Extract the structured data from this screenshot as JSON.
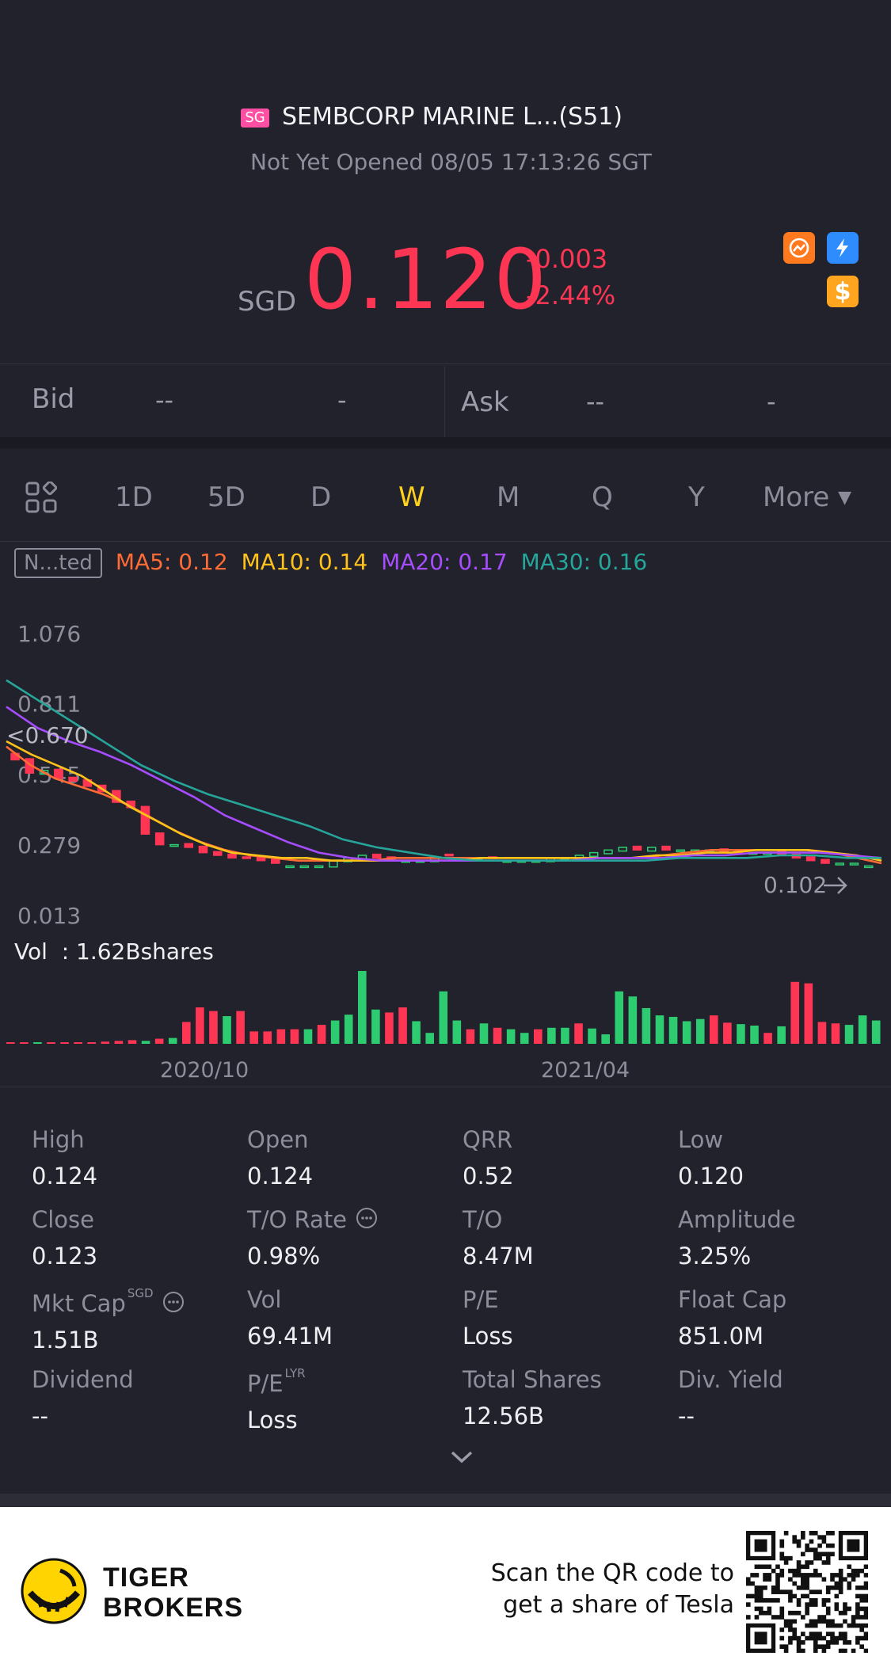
{
  "header": {
    "market_badge": "SG",
    "title": "SEMBCORP MARINE L...(S51)",
    "status": "Not Yet Opened 08/05 17:13:26 SGT"
  },
  "quote": {
    "currency": "SGD",
    "price": "0.120",
    "change": "-0.003",
    "change_pct": "-2.44%",
    "down_color": "#ff3554"
  },
  "quote_icons": [
    {
      "name": "orange-badge-icon",
      "color": "#ff7a1f"
    },
    {
      "name": "lightning-icon",
      "color": "#2f8cff"
    },
    {
      "name": "dollar-icon",
      "color": "#ffa51f"
    }
  ],
  "bidask": {
    "bid_label": "Bid",
    "bid_price": "--",
    "bid_size": "-",
    "ask_label": "Ask",
    "ask_price": "--",
    "ask_size": "-"
  },
  "tabs": {
    "items": [
      "1D",
      "5D",
      "D",
      "W",
      "M",
      "Q",
      "Y"
    ],
    "active": "W",
    "more_label": "More"
  },
  "ma_legend": {
    "mode_label": "N...ted",
    "ma5": "MA5: 0.12",
    "ma10": "MA10: 0.14",
    "ma20": "MA20: 0.17",
    "ma30": "MA30: 0.16",
    "colors": {
      "ma5": "#ff6b35",
      "ma10": "#ffc21a",
      "ma20": "#a64dff",
      "ma30": "#26a69a"
    }
  },
  "chart_data": {
    "type": "line",
    "y_ticks": [
      "1.076",
      "0.811",
      "0.545",
      "0.279",
      "0.013"
    ],
    "ylim": [
      0.013,
      1.076
    ],
    "overlay_labels": {
      "left_value": "0.670",
      "last_price": "0.102"
    },
    "x_ticks": [
      "2020/10",
      "2021/04"
    ],
    "volume_label": "Vol  : 1.62Bshares",
    "candle_close": [
      0.6,
      0.55,
      0.56,
      0.53,
      0.52,
      0.5,
      0.48,
      0.44,
      0.42,
      0.32,
      0.28,
      0.28,
      0.27,
      0.25,
      0.24,
      0.23,
      0.23,
      0.22,
      0.21,
      0.2,
      0.2,
      0.2,
      0.22,
      0.23,
      0.24,
      0.23,
      0.22,
      0.22,
      0.22,
      0.23,
      0.24,
      0.23,
      0.23,
      0.23,
      0.22,
      0.22,
      0.22,
      0.23,
      0.23,
      0.24,
      0.25,
      0.26,
      0.27,
      0.26,
      0.27,
      0.26,
      0.26,
      0.26,
      0.26,
      0.25,
      0.25,
      0.25,
      0.25,
      0.24,
      0.23,
      0.22,
      0.21,
      0.21,
      0.21,
      0.2
    ],
    "candle_up": [
      false,
      false,
      true,
      false,
      false,
      false,
      false,
      false,
      false,
      false,
      false,
      true,
      false,
      false,
      false,
      false,
      false,
      false,
      false,
      true,
      true,
      true,
      true,
      true,
      true,
      false,
      false,
      true,
      true,
      true,
      false,
      true,
      true,
      false,
      true,
      true,
      true,
      true,
      true,
      true,
      true,
      true,
      true,
      false,
      true,
      false,
      true,
      true,
      true,
      false,
      false,
      true,
      true,
      false,
      false,
      false,
      false,
      true,
      true,
      true
    ],
    "series": [
      {
        "name": "MA5",
        "color": "#ff6b35",
        "values": [
          0.65,
          0.58,
          0.53,
          0.5,
          0.47,
          0.43,
          0.38,
          0.33,
          0.29,
          0.26,
          0.24,
          0.23,
          0.22,
          0.22,
          0.22,
          0.22,
          0.23,
          0.23,
          0.23,
          0.23,
          0.23,
          0.23,
          0.23,
          0.23,
          0.23,
          0.23,
          0.23,
          0.24,
          0.25,
          0.26,
          0.26,
          0.26,
          0.26,
          0.26,
          0.25,
          0.23,
          0.21
        ]
      },
      {
        "name": "MA10",
        "color": "#ffc21a",
        "values": [
          0.67,
          0.62,
          0.58,
          0.54,
          0.48,
          0.42,
          0.37,
          0.32,
          0.28,
          0.25,
          0.24,
          0.23,
          0.23,
          0.22,
          0.22,
          0.22,
          0.22,
          0.22,
          0.22,
          0.23,
          0.23,
          0.23,
          0.23,
          0.23,
          0.23,
          0.23,
          0.24,
          0.24,
          0.25,
          0.25,
          0.26,
          0.26,
          0.26,
          0.25,
          0.24,
          0.22
        ]
      },
      {
        "name": "MA20",
        "color": "#a64dff",
        "values": [
          0.8,
          0.72,
          0.67,
          0.63,
          0.58,
          0.52,
          0.46,
          0.39,
          0.34,
          0.29,
          0.25,
          0.23,
          0.22,
          0.22,
          0.22,
          0.22,
          0.22,
          0.22,
          0.22,
          0.23,
          0.23,
          0.23,
          0.24,
          0.24,
          0.25,
          0.25,
          0.25,
          0.24,
          0.23
        ]
      },
      {
        "name": "MA30",
        "color": "#26a69a",
        "values": [
          0.9,
          0.82,
          0.74,
          0.66,
          0.58,
          0.52,
          0.47,
          0.43,
          0.39,
          0.35,
          0.3,
          0.27,
          0.25,
          0.23,
          0.22,
          0.22,
          0.22,
          0.22,
          0.22,
          0.22,
          0.23,
          0.23,
          0.23,
          0.24,
          0.24,
          0.23,
          0.23
        ]
      }
    ],
    "volume_bars": [
      0.02,
      0.02,
      0.02,
      0.02,
      0.02,
      0.02,
      0.02,
      0.03,
      0.04,
      0.05,
      0.04,
      0.07,
      0.08,
      0.3,
      0.5,
      0.45,
      0.38,
      0.45,
      0.17,
      0.17,
      0.2,
      0.2,
      0.2,
      0.26,
      0.32,
      0.4,
      1.0,
      0.47,
      0.43,
      0.5,
      0.31,
      0.15,
      0.72,
      0.32,
      0.2,
      0.28,
      0.22,
      0.2,
      0.15,
      0.2,
      0.22,
      0.22,
      0.28,
      0.21,
      0.13,
      0.72,
      0.65,
      0.49,
      0.39,
      0.37,
      0.31,
      0.34,
      0.39,
      0.29,
      0.27,
      0.25,
      0.15,
      0.24,
      0.85,
      0.83,
      0.3,
      0.28,
      0.26,
      0.39,
      0.32
    ],
    "volume_up": [
      false,
      false,
      true,
      false,
      false,
      false,
      false,
      false,
      false,
      false,
      true,
      false,
      true,
      false,
      false,
      false,
      true,
      false,
      false,
      false,
      false,
      false,
      true,
      false,
      true,
      true,
      true,
      true,
      false,
      false,
      true,
      true,
      true,
      true,
      false,
      true,
      false,
      true,
      true,
      false,
      true,
      true,
      false,
      true,
      true,
      true,
      true,
      true,
      true,
      true,
      true,
      true,
      false,
      false,
      true,
      true,
      false,
      true,
      false,
      false,
      false,
      false,
      true,
      true,
      true
    ]
  },
  "stats": [
    {
      "label": "High",
      "value": "0.124"
    },
    {
      "label": "Open",
      "value": "0.124"
    },
    {
      "label": "QRR",
      "value": "0.52"
    },
    {
      "label": "Low",
      "value": "0.120"
    },
    {
      "label": "Close",
      "value": "0.123"
    },
    {
      "label": "T/O Rate",
      "value": "0.98%",
      "info": true
    },
    {
      "label": "T/O",
      "value": "8.47M"
    },
    {
      "label": "Amplitude",
      "value": "3.25%"
    },
    {
      "label": "Mkt Cap",
      "sup": "SGD",
      "value": "1.51B",
      "info": true
    },
    {
      "label": "Vol",
      "value": "69.41M"
    },
    {
      "label": "P/E",
      "value": "Loss"
    },
    {
      "label": "Float Cap",
      "value": "851.0M"
    },
    {
      "label": "Dividend",
      "value": "--"
    },
    {
      "label": "P/E",
      "sup": "LYR",
      "value": "Loss"
    },
    {
      "label": "Total Shares",
      "value": "12.56B"
    },
    {
      "label": "Div. Yield",
      "value": "--"
    }
  ],
  "footer": {
    "brand_line1": "TIGER",
    "brand_line2": "BROKERS",
    "promo_line1": "Scan the QR code to",
    "promo_line2": "get a share of Tesla"
  }
}
